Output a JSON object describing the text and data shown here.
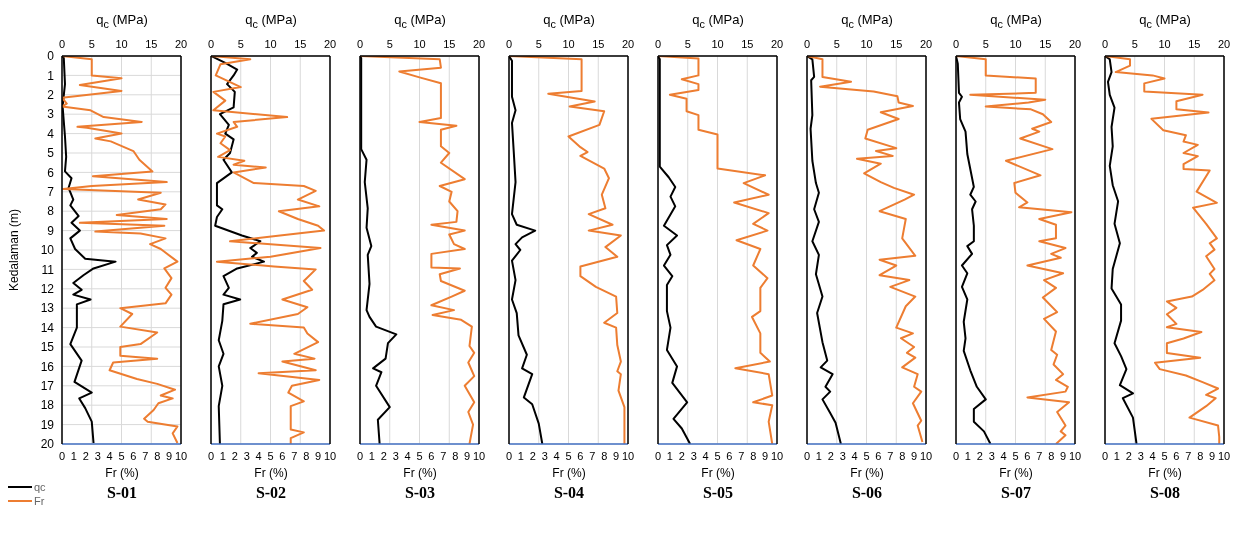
{
  "chart_data": [
    {
      "type": "line",
      "title": "S-01",
      "xlabel": "Fr (%)",
      "x2label": "q$_{c}$ (MPa)",
      "ylabel": "Kedalaman (m)",
      "xlim": [
        0,
        10
      ],
      "xticks": [
        0,
        1,
        2,
        3,
        4,
        5,
        6,
        7,
        8,
        9,
        10
      ],
      "x2lim": [
        0,
        20
      ],
      "x2ticks": [
        0,
        5,
        10,
        15,
        20
      ],
      "ylim": [
        20,
        0
      ],
      "yticks": [
        0,
        1,
        2,
        3,
        4,
        5,
        6,
        7,
        8,
        9,
        10,
        11,
        12,
        13,
        14,
        15,
        16,
        17,
        18,
        19,
        20
      ],
      "grid": true,
      "legend": "bottom left",
      "marker": "none",
      "line_style": "solid",
      "series": [
        {
          "name": "qc",
          "color": "#000000",
          "axis": "x2",
          "x": [
            0,
            0.3,
            0.5,
            0.1,
            0.5,
            0.7,
            0.5,
            1.6,
            1.1,
            1.9,
            1.4,
            2.8,
            1.6,
            3.0,
            1.4,
            2.2,
            3.9,
            9.0,
            5.3,
            3.6,
            1.9,
            3.3,
            1.9,
            4.8,
            2.5,
            2.5,
            1.4,
            3.3,
            2.1,
            5.0,
            2.9,
            3.9,
            5.0,
            5.3
          ],
          "values": [
            0,
            0.1,
            1.45,
            2.6,
            4.15,
            5.2,
            5.95,
            6.3,
            6.8,
            7.4,
            7.7,
            8.25,
            8.6,
            9.0,
            9.4,
            9.95,
            10.45,
            10.6,
            10.95,
            11.3,
            11.7,
            12.05,
            12.3,
            12.55,
            12.8,
            14.0,
            14.85,
            15.7,
            16.8,
            17.35,
            17.65,
            18.15,
            18.85,
            19.95
          ]
        },
        {
          "name": "Fr",
          "color": "#ed7d31",
          "x": [
            0,
            2.5,
            2.5,
            5.0,
            1.5,
            5.0,
            0,
            0.4,
            0,
            2.4,
            3.5,
            6.7,
            1.3,
            2.1,
            5.0,
            2.8,
            4.1,
            6.0,
            6.5,
            7.6,
            2.6,
            8.8,
            2.5,
            0.1,
            8.3,
            6.4,
            8.7,
            8.3,
            4.6,
            8.8,
            1.5,
            8.6,
            2.8,
            6.6,
            8.7,
            7.4,
            8.3,
            9.7,
            8.6,
            9.2,
            8.7,
            9.2,
            8.7,
            4.9,
            5.9,
            4.9,
            8.0,
            6.6,
            4.9,
            4.9,
            8.0,
            4.3,
            4.0,
            6.3,
            8.0,
            9.5,
            8.3,
            9.3,
            8.1,
            7.7,
            6.9,
            7.2,
            9.7,
            9.3,
            9.7
          ],
          "values": [
            0,
            0.17,
            1.0,
            1.15,
            1.5,
            1.8,
            2.15,
            2.45,
            2.6,
            2.8,
            3.15,
            3.4,
            3.65,
            3.7,
            4.0,
            4.25,
            4.4,
            4.9,
            5.35,
            5.95,
            6.2,
            6.5,
            6.7,
            6.85,
            7.05,
            7.4,
            7.65,
            7.9,
            8.2,
            8.4,
            8.6,
            8.75,
            9.05,
            9.15,
            9.4,
            9.7,
            9.95,
            10.6,
            10.95,
            11.45,
            11.95,
            12.3,
            12.75,
            13.0,
            13.3,
            13.95,
            14.25,
            14.85,
            15.0,
            15.45,
            15.6,
            15.8,
            16.2,
            16.65,
            16.9,
            17.2,
            17.5,
            17.65,
            17.9,
            18.25,
            18.7,
            18.85,
            19.1,
            19.45,
            19.95
          ]
        }
      ]
    },
    {
      "type": "line",
      "title": "S-02",
      "xlabel": "Fr (%)",
      "x2label": "q$_{c}$ (MPa)",
      "xlim": [
        0,
        10
      ],
      "xticks": [
        0,
        1,
        2,
        3,
        4,
        5,
        6,
        7,
        8,
        9,
        10
      ],
      "x2lim": [
        0,
        20
      ],
      "x2ticks": [
        0,
        5,
        10,
        15,
        20
      ],
      "ylim": [
        20,
        0
      ],
      "yticks": [
        0,
        1,
        2,
        3,
        4,
        5,
        6,
        7,
        8,
        9,
        10,
        11,
        12,
        13,
        14,
        15,
        16,
        17,
        18,
        19,
        20
      ],
      "tick_labels": "x",
      "grid": true,
      "marker": "none",
      "line_style": "solid",
      "series": [
        {
          "color": "#000000",
          "axis": "x2",
          "x": [
            0,
            2.4,
            4.4,
            3.8,
            2.7,
            4.0,
            3.8,
            1.5,
            3.0,
            2.4,
            3.8,
            3.2,
            2.1,
            3.5,
            1.0,
            1.0,
            1.9,
            1.0,
            0.7,
            5.2,
            8.3,
            6.6,
            7.7,
            6.9,
            8.9,
            4.4,
            2.1,
            3.0,
            2.1,
            4.9,
            2.1,
            1.9,
            1.3,
            2.1,
            1.3,
            1.9,
            1.3,
            1.5
          ],
          "values": [
            0,
            0.35,
            0.7,
            1.0,
            1.45,
            1.85,
            2.65,
            3.0,
            3.55,
            4.0,
            4.3,
            5.0,
            5.35,
            6.0,
            6.55,
            7.7,
            7.9,
            8.3,
            8.75,
            9.25,
            9.55,
            9.9,
            10.15,
            10.35,
            10.6,
            10.95,
            11.35,
            11.95,
            12.3,
            12.55,
            12.8,
            13.65,
            14.65,
            15.35,
            16.0,
            17.0,
            18.05,
            20
          ]
        },
        {
          "color": "#ed7d31",
          "x": [
            0,
            3.3,
            0.8,
            0.4,
            2.5,
            0.2,
            1.2,
            0.2,
            6.4,
            1.9,
            2.2,
            0.5,
            1.2,
            0.8,
            1.6,
            0.6,
            2.8,
            1.9,
            4.6,
            1.9,
            3.6,
            7.8,
            8.8,
            7.3,
            9.1,
            5.7,
            7.3,
            9.0,
            9.5,
            5.8,
            1.6,
            9.2,
            5.0,
            0.5,
            5.3,
            8.8,
            7.8,
            8.5,
            6.0,
            8.1,
            7.3,
            3.3,
            7.8,
            8.1,
            9.0,
            7.0,
            8.7,
            6.0,
            8.8,
            4.0,
            9.1,
            6.8,
            6.5,
            7.8,
            6.7,
            6.7,
            7.8,
            6.7,
            6.7
          ],
          "values": [
            0,
            0.17,
            0.42,
            1.0,
            1.6,
            1.85,
            2.3,
            2.8,
            3.15,
            3.4,
            3.65,
            4.0,
            4.15,
            4.5,
            4.85,
            5.2,
            5.4,
            5.6,
            5.75,
            6.0,
            6.55,
            6.7,
            6.95,
            7.4,
            7.75,
            8.0,
            8.4,
            8.75,
            9.0,
            9.25,
            9.55,
            9.9,
            10.35,
            10.6,
            10.85,
            11.0,
            11.6,
            12.05,
            12.55,
            12.95,
            13.3,
            13.8,
            14.0,
            14.3,
            14.75,
            15.35,
            15.6,
            15.75,
            16.2,
            16.35,
            16.7,
            17.0,
            17.35,
            17.8,
            18.05,
            19.25,
            19.4,
            19.7,
            20
          ]
        }
      ]
    },
    {
      "type": "line",
      "title": "S-03",
      "xlabel": "Fr (%)",
      "x2label": "q$_{c}$ (MPa)",
      "xlim": [
        0,
        10
      ],
      "xticks": [
        0,
        1,
        2,
        3,
        4,
        5,
        6,
        7,
        8,
        9,
        10
      ],
      "x2lim": [
        0,
        20
      ],
      "x2ticks": [
        0,
        5,
        10,
        15,
        20
      ],
      "ylim": [
        20,
        0
      ],
      "yticks": [
        0,
        1,
        2,
        3,
        4,
        5,
        6,
        7,
        8,
        9,
        10,
        11,
        12,
        13,
        14,
        15,
        16,
        17,
        18,
        19,
        20
      ],
      "tick_labels": "x",
      "grid": true,
      "marker": "none",
      "line_style": "solid",
      "series": [
        {
          "color": "#000000",
          "axis": "x2",
          "x": [
            0,
            0.2,
            0.2,
            1.1,
            0.8,
            1.3,
            1.1,
            1.9,
            1.3,
            1.6,
            1.1,
            1.6,
            2.7,
            6.1,
            4.7,
            4.3,
            2.2,
            3.6,
            2.7,
            5.0,
            3.0,
            3.3
          ],
          "values": [
            0,
            0.1,
            4.8,
            5.35,
            6.5,
            7.85,
            8.85,
            9.8,
            10.25,
            11.75,
            13.1,
            13.45,
            13.95,
            14.35,
            14.8,
            15.6,
            16.1,
            16.3,
            17.0,
            18.1,
            18.75,
            20
          ]
        },
        {
          "color": "#ed7d31",
          "x": [
            0,
            6.7,
            6.8,
            3.3,
            5.0,
            6.8,
            6.8,
            5.0,
            8.1,
            6.8,
            6.8,
            7.5,
            6.8,
            8.8,
            6.7,
            7.7,
            7.5,
            8.2,
            8.1,
            6.0,
            8.8,
            7.5,
            7.9,
            8.8,
            6.0,
            6.0,
            8.4,
            6.7,
            6.8,
            8.8,
            7.7,
            6.0,
            7.9,
            6.1,
            8.5,
            9.4,
            9.2,
            9.6,
            9.1,
            9.6,
            8.8,
            9.6,
            9.1,
            9.5,
            9.2
          ],
          "values": [
            0,
            0.17,
            0.6,
            0.8,
            1.1,
            1.4,
            3.2,
            3.4,
            3.6,
            3.8,
            4.65,
            5.0,
            5.5,
            6.35,
            6.7,
            7.0,
            7.5,
            8.0,
            8.55,
            8.7,
            9.0,
            9.2,
            9.7,
            9.95,
            10.2,
            10.9,
            10.95,
            11.25,
            11.6,
            12.1,
            12.4,
            12.85,
            13.1,
            13.35,
            13.6,
            13.95,
            14.95,
            15.3,
            15.8,
            16.5,
            17.0,
            17.85,
            18.35,
            19.0,
            20
          ]
        }
      ]
    },
    {
      "type": "line",
      "title": "S-04",
      "xlabel": "Fr (%)",
      "x2label": "q$_{c}$ (MPa)",
      "xlim": [
        0,
        10
      ],
      "xticks": [
        0,
        1,
        2,
        3,
        4,
        5,
        6,
        7,
        8,
        9,
        10
      ],
      "x2lim": [
        0,
        20
      ],
      "x2ticks": [
        0,
        5,
        10,
        15,
        20
      ],
      "ylim": [
        20,
        0
      ],
      "yticks": [
        0,
        1,
        2,
        3,
        4,
        5,
        6,
        7,
        8,
        9,
        10,
        11,
        12,
        13,
        14,
        15,
        16,
        17,
        18,
        19,
        20
      ],
      "tick_labels": "x",
      "grid": true,
      "marker": "none",
      "line_style": "solid",
      "series": [
        {
          "color": "#000000",
          "axis": "x2",
          "x": [
            0,
            0.5,
            0.5,
            1.1,
            0.5,
            0.8,
            1.1,
            0.5,
            1.3,
            4.4,
            2.2,
            1.1,
            1.9,
            0.5,
            1.1,
            0.5,
            1.3,
            1.6,
            3.0,
            2.2,
            3.9,
            2.5,
            3.9,
            5.0,
            5.6
          ],
          "values": [
            0,
            0.25,
            2.1,
            2.8,
            3.45,
            4.95,
            6.5,
            8.15,
            8.7,
            9.0,
            9.35,
            9.7,
            10.0,
            10.55,
            11.55,
            12.55,
            13.25,
            14.4,
            15.4,
            16.1,
            16.4,
            17.6,
            17.95,
            18.95,
            20
          ]
        },
        {
          "color": "#ed7d31",
          "x": [
            0,
            6.1,
            6.1,
            3.3,
            7.2,
            5.1,
            8.0,
            7.6,
            5.0,
            6.0,
            6.6,
            6.0,
            8.0,
            8.4,
            7.8,
            8.1,
            6.7,
            8.7,
            6.7,
            9.4,
            8.1,
            9.1,
            6.0,
            6.0,
            7.3,
            9.0,
            9.1,
            8.0,
            9.0,
            9.1,
            9.4,
            9.1,
            9.4,
            9.2,
            9.7,
            9.7
          ],
          "values": [
            0,
            0.17,
            1.8,
            1.95,
            2.35,
            2.6,
            2.85,
            3.55,
            4.15,
            4.7,
            4.95,
            5.15,
            5.8,
            6.3,
            7.15,
            7.85,
            8.15,
            8.7,
            9.0,
            9.25,
            9.85,
            10.35,
            10.85,
            11.35,
            11.9,
            12.4,
            13.25,
            13.75,
            14.0,
            14.9,
            15.75,
            16.25,
            16.4,
            17.25,
            18.1,
            20
          ]
        }
      ]
    },
    {
      "type": "line",
      "title": "S-05",
      "xlabel": "Fr (%)",
      "x2label": "q$_{c}$ (MPa)",
      "xlim": [
        0,
        10
      ],
      "xticks": [
        0,
        1,
        2,
        3,
        4,
        5,
        6,
        7,
        8,
        9,
        10
      ],
      "x2lim": [
        0,
        20
      ],
      "x2ticks": [
        0,
        5,
        10,
        15,
        20
      ],
      "ylim": [
        20,
        0
      ],
      "yticks": [
        0,
        1,
        2,
        3,
        4,
        5,
        6,
        7,
        8,
        9,
        10,
        11,
        12,
        13,
        14,
        15,
        16,
        17,
        18,
        19,
        20
      ],
      "tick_labels": "x",
      "grid": true,
      "marker": "none",
      "line_style": "solid",
      "series": [
        {
          "color": "#000000",
          "axis": "x2",
          "x": [
            0,
            0.3,
            0.3,
            1.8,
            2.9,
            2.1,
            2.9,
            1.0,
            3.2,
            1.5,
            2.1,
            1.0,
            2.4,
            1.5,
            1.5,
            2.1,
            1.5,
            3.2,
            2.4,
            4.9,
            2.6,
            4.0,
            5.4
          ],
          "values": [
            0,
            0.17,
            5.7,
            6.25,
            6.75,
            7.25,
            7.75,
            8.75,
            9.25,
            9.75,
            10.25,
            10.8,
            11.35,
            11.8,
            13.15,
            14.0,
            15.15,
            16.0,
            16.85,
            17.85,
            18.7,
            19.2,
            20
          ]
        },
        {
          "color": "#ed7d31",
          "x": [
            0,
            3.4,
            3.4,
            2.0,
            3.4,
            3.4,
            1.0,
            2.4,
            2.4,
            3.4,
            3.4,
            5.0,
            5.0,
            9.0,
            7.2,
            9.3,
            6.4,
            9.3,
            8.0,
            9.2,
            6.6,
            8.6,
            8.0,
            9.2,
            8.6,
            8.6,
            7.9,
            8.6,
            8.6,
            9.4,
            6.5,
            9.3,
            9.6,
            8.0,
            9.6,
            9.3,
            9.6
          ],
          "values": [
            0,
            0.13,
            1.0,
            1.2,
            1.45,
            1.75,
            2.0,
            2.2,
            2.85,
            3.05,
            3.8,
            4.05,
            5.8,
            6.15,
            6.55,
            7.15,
            7.55,
            8.1,
            8.65,
            9.0,
            9.5,
            9.95,
            10.8,
            11.45,
            11.95,
            13.15,
            13.45,
            14.3,
            15.3,
            15.75,
            16.1,
            16.4,
            17.5,
            17.85,
            18.0,
            18.85,
            20
          ]
        }
      ]
    },
    {
      "type": "line",
      "title": "S-06",
      "xlabel": "Fr (%)",
      "x2label": "q$_{c}$ (MPa)",
      "xlim": [
        0,
        10
      ],
      "xticks": [
        0,
        1,
        2,
        3,
        4,
        5,
        6,
        7,
        8,
        9,
        10
      ],
      "x2lim": [
        0,
        20
      ],
      "x2ticks": [
        0,
        5,
        10,
        15,
        20
      ],
      "ylim": [
        20,
        0
      ],
      "yticks": [
        0,
        1,
        2,
        3,
        4,
        5,
        6,
        7,
        8,
        9,
        10,
        11,
        12,
        13,
        14,
        15,
        16,
        17,
        18,
        19,
        20
      ],
      "tick_labels": "x",
      "grid": true,
      "marker": "none",
      "line_style": "solid",
      "series": [
        {
          "color": "#000000",
          "axis": "x2",
          "x": [
            0,
            0.9,
            1.2,
            0.7,
            0.9,
            0.6,
            0.9,
            1.5,
            2.0,
            1.2,
            2.0,
            0.9,
            2.0,
            1.5,
            2.6,
            1.7,
            2.6,
            3.4,
            2.3,
            4.3,
            3.1,
            3.9,
            2.6,
            3.9,
            4.8,
            5.7
          ],
          "values": [
            0,
            0.17,
            1.08,
            1.25,
            3.05,
            3.75,
            5.4,
            6.55,
            7.05,
            7.9,
            8.55,
            9.55,
            10.25,
            11.25,
            12.4,
            13.25,
            14.75,
            15.7,
            16.05,
            16.4,
            17.05,
            17.3,
            17.7,
            18.4,
            18.9,
            20
          ]
        },
        {
          "color": "#ed7d31",
          "x": [
            0,
            1.3,
            1.3,
            3.7,
            1.1,
            5.6,
            7.6,
            7.7,
            8.9,
            6.2,
            7.7,
            5.1,
            4.9,
            7.5,
            5.8,
            7.2,
            4.2,
            6.2,
            4.8,
            6.2,
            7.3,
            9.0,
            8.2,
            6.1,
            8.3,
            8.0,
            9.1,
            6.1,
            7.5,
            6.1,
            8.6,
            7.0,
            9.1,
            8.3,
            7.5,
            8.9,
            7.9,
            9.0,
            8.4,
            9.1,
            8.0,
            9.3,
            9.0,
            9.6,
            8.9,
            9.6,
            9.3,
            9.7
          ],
          "values": [
            0,
            0.17,
            1.08,
            1.33,
            1.58,
            1.83,
            2.08,
            2.4,
            2.58,
            2.9,
            3.25,
            3.8,
            4.25,
            4.75,
            4.9,
            5.15,
            5.3,
            5.55,
            6.05,
            6.5,
            6.8,
            7.15,
            7.4,
            8.0,
            8.4,
            9.4,
            10.3,
            10.5,
            10.8,
            11.3,
            11.55,
            11.9,
            12.4,
            12.9,
            14.0,
            14.3,
            14.55,
            15.0,
            15.3,
            15.55,
            16.05,
            16.4,
            17.05,
            17.3,
            17.9,
            18.8,
            19.05,
            19.9
          ]
        }
      ]
    },
    {
      "type": "line",
      "title": "S-07",
      "xlabel": "Fr (%)",
      "x2label": "q$_{c}$ (MPa)",
      "xlim": [
        0,
        10
      ],
      "xticks": [
        0,
        1,
        2,
        3,
        4,
        5,
        6,
        7,
        8,
        9,
        10
      ],
      "x2lim": [
        0,
        20
      ],
      "x2ticks": [
        0,
        5,
        10,
        15,
        20
      ],
      "ylim": [
        20,
        0
      ],
      "yticks": [
        0,
        1,
        2,
        3,
        4,
        5,
        6,
        7,
        8,
        9,
        10,
        11,
        12,
        13,
        14,
        15,
        16,
        17,
        18,
        19,
        20
      ],
      "tick_labels": "x",
      "grid": true,
      "marker": "none",
      "line_style": "solid",
      "series": [
        {
          "color": "#000000",
          "axis": "x2",
          "x": [
            0,
            0.3,
            0.5,
            1.0,
            0.5,
            0.7,
            1.6,
            1.9,
            3.0,
            2.4,
            3.3,
            2.7,
            3.0,
            3.0,
            1.9,
            2.7,
            1.0,
            1.9,
            1.0,
            1.9,
            1.3,
            1.6,
            1.3,
            2.4,
            3.5,
            5.0,
            3.0,
            3.0,
            4.7,
            5.8
          ],
          "values": [
            0,
            0.4,
            1.9,
            2.1,
            2.4,
            3.25,
            3.9,
            5.05,
            6.75,
            7.15,
            7.5,
            7.9,
            8.75,
            9.55,
            9.8,
            10.2,
            10.8,
            11.2,
            11.9,
            12.55,
            13.7,
            14.55,
            15.2,
            16.2,
            17.05,
            17.7,
            18.2,
            18.85,
            19.35,
            20
          ]
        },
        {
          "color": "#ed7d31",
          "x": [
            0,
            2.5,
            2.5,
            6.7,
            6.7,
            1.2,
            7.5,
            6.1,
            2.5,
            6.3,
            7.3,
            8.0,
            6.4,
            7.0,
            5.4,
            8.1,
            4.2,
            7.1,
            4.9,
            5.0,
            6.0,
            5.3,
            9.7,
            7.0,
            8.4,
            8.4,
            7.0,
            9.2,
            8.0,
            8.8,
            6.0,
            9.0,
            7.4,
            8.4,
            7.3,
            8.5,
            7.4,
            8.4,
            8.0,
            8.5,
            8.2,
            9.0,
            8.4,
            9.4,
            9.2,
            6.0,
            9.5,
            8.5,
            9.2,
            8.8,
            9.2,
            8.4
          ],
          "values": [
            0,
            0.17,
            1.0,
            1.16,
            1.9,
            2.0,
            2.25,
            2.4,
            2.6,
            2.75,
            3.0,
            3.4,
            3.75,
            3.9,
            4.25,
            4.8,
            5.4,
            6.15,
            6.55,
            7.05,
            7.55,
            7.8,
            8.05,
            8.4,
            8.7,
            9.4,
            9.55,
            9.9,
            10.2,
            10.4,
            10.8,
            11.2,
            11.55,
            11.95,
            12.45,
            13.2,
            13.55,
            14.2,
            15.15,
            15.4,
            15.9,
            16.4,
            16.7,
            17.05,
            17.3,
            17.6,
            17.85,
            18.35,
            19.05,
            19.35,
            19.55,
            20
          ]
        }
      ]
    },
    {
      "type": "line",
      "title": "S-08",
      "xlabel": "Fr (%)",
      "x2label": "q$_{c}$ (MPa)",
      "xlim": [
        0,
        10
      ],
      "xticks": [
        0,
        1,
        2,
        3,
        4,
        5,
        6,
        7,
        8,
        9,
        10
      ],
      "x2lim": [
        0,
        20
      ],
      "x2ticks": [
        0,
        5,
        10,
        15,
        20
      ],
      "ylim": [
        20,
        0
      ],
      "yticks": [
        0,
        1,
        2,
        3,
        4,
        5,
        6,
        7,
        8,
        9,
        10,
        11,
        12,
        13,
        14,
        15,
        16,
        17,
        18,
        19,
        20
      ],
      "tick_labels": "x",
      "grid": true,
      "marker": "none",
      "line_style": "solid",
      "series": [
        {
          "color": "#000000",
          "axis": "x2",
          "x": [
            0,
            0.8,
            1.1,
            0.5,
            0.8,
            1.6,
            1.1,
            1.3,
            0.8,
            1.3,
            2.2,
            1.6,
            2.5,
            1.3,
            1.1,
            2.7,
            2.7,
            1.6,
            2.7,
            3.6,
            2.5,
            4.7,
            3.0,
            4.7,
            5.3
          ],
          "values": [
            0,
            0.17,
            0.83,
            1.33,
            2.0,
            2.66,
            3.66,
            4.66,
            5.66,
            6.66,
            7.49,
            8.65,
            9.65,
            10.98,
            11.98,
            12.81,
            13.64,
            14.81,
            15.47,
            16.14,
            16.97,
            17.39,
            17.64,
            18.64,
            20
          ]
        },
        {
          "color": "#ed7d31",
          "x": [
            0,
            2.1,
            2.1,
            0.9,
            4.0,
            5.0,
            3.3,
            3.3,
            8.2,
            6.0,
            6.0,
            8.7,
            3.9,
            4.9,
            6.8,
            6.6,
            7.8,
            6.6,
            7.8,
            6.6,
            6.6,
            8.8,
            7.7,
            9.4,
            7.4,
            8.5,
            9.4,
            8.8,
            9.2,
            8.5,
            9.2,
            8.8,
            9.2,
            8.2,
            7.3,
            5.2,
            6.0,
            5.2,
            6.0,
            5.2,
            8.1,
            6.6,
            5.2,
            5.2,
            8.0,
            4.2,
            4.6,
            6.8,
            8.2,
            9.5,
            8.5,
            9.3,
            8.5,
            7.1,
            9.5,
            9.6,
            9.6
          ],
          "values": [
            0,
            0.17,
            0.5,
            0.83,
            1.0,
            1.16,
            1.41,
            1.83,
            2.0,
            2.33,
            2.75,
            2.91,
            3.24,
            3.83,
            4.08,
            4.41,
            4.58,
            5.0,
            5.16,
            5.57,
            5.82,
            5.9,
            6.99,
            7.57,
            7.82,
            8.65,
            9.4,
            9.65,
            9.98,
            10.32,
            10.98,
            11.23,
            11.56,
            12.06,
            12.4,
            12.65,
            12.98,
            13.31,
            13.81,
            13.98,
            14.23,
            14.56,
            14.81,
            15.31,
            15.56,
            15.81,
            16.14,
            16.47,
            16.81,
            17.14,
            17.47,
            17.64,
            18.05,
            18.64,
            19.05,
            19.64,
            20
          ]
        }
      ]
    }
  ]
}
